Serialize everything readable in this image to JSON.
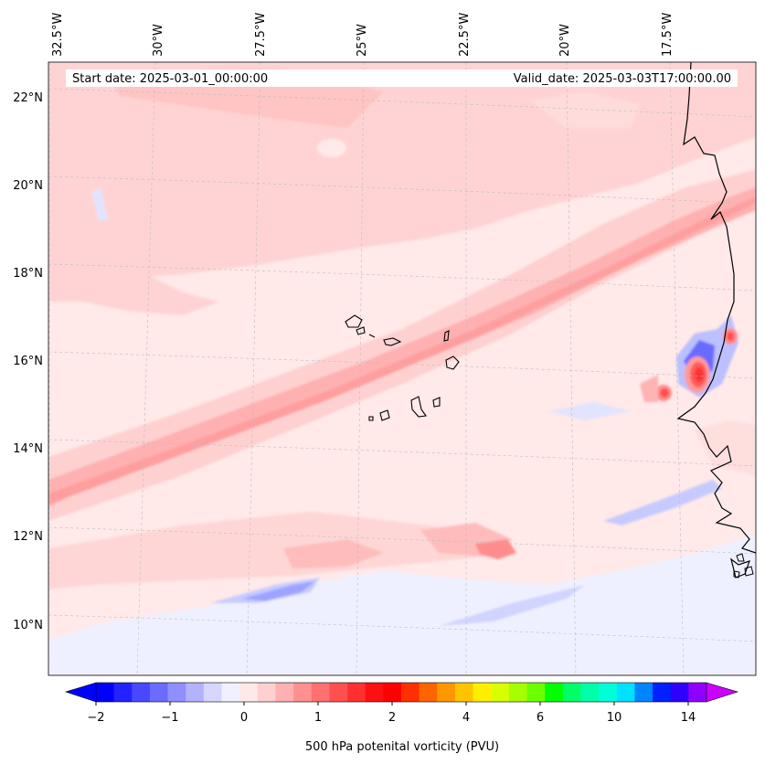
{
  "header": {
    "start_date": "Start date: 2025-03-01_00:00:00",
    "valid_date": "Valid_date: 2025-03-03T17:00:00.00"
  },
  "map": {
    "longitude_labels": [
      "32.5°W",
      "30°W",
      "27.5°W",
      "25°W",
      "22.5°W",
      "20°W",
      "17.5°W"
    ],
    "latitude_labels": [
      "22°N",
      "20°N",
      "18°N",
      "16°N",
      "14°N",
      "12°N",
      "10°N"
    ],
    "gridlines": true,
    "coastlines": true,
    "field": "500 hPa potential vorticity"
  },
  "colorbar": {
    "label": "500 hPa potenital vorticity (PVU)",
    "tick_labels": [
      "−2",
      "−1",
      "0",
      "1",
      "2",
      "4",
      "6",
      "10",
      "14"
    ],
    "extend": "both",
    "colors": [
      "#0000ff",
      "#2323ff",
      "#4848ff",
      "#6b6bff",
      "#8f8fff",
      "#b2b2ff",
      "#d6d6ff",
      "#f0f0ff",
      "#ffe8e8",
      "#ffd0d0",
      "#ffb0b0",
      "#ff9090",
      "#ff7070",
      "#ff5050",
      "#ff3030",
      "#ff1010",
      "#ff0000",
      "#ff3000",
      "#ff6400",
      "#ff9800",
      "#ffc400",
      "#ffee00",
      "#d8ff00",
      "#a6ff00",
      "#6cff00",
      "#00ff00",
      "#00ff66",
      "#00ffaa",
      "#00ffd8",
      "#00e0ff",
      "#0084ff",
      "#0020ff",
      "#3000ff",
      "#9000ff"
    ],
    "low_extend_color": "#0000ff",
    "high_extend_color": "#cc00ff"
  }
}
